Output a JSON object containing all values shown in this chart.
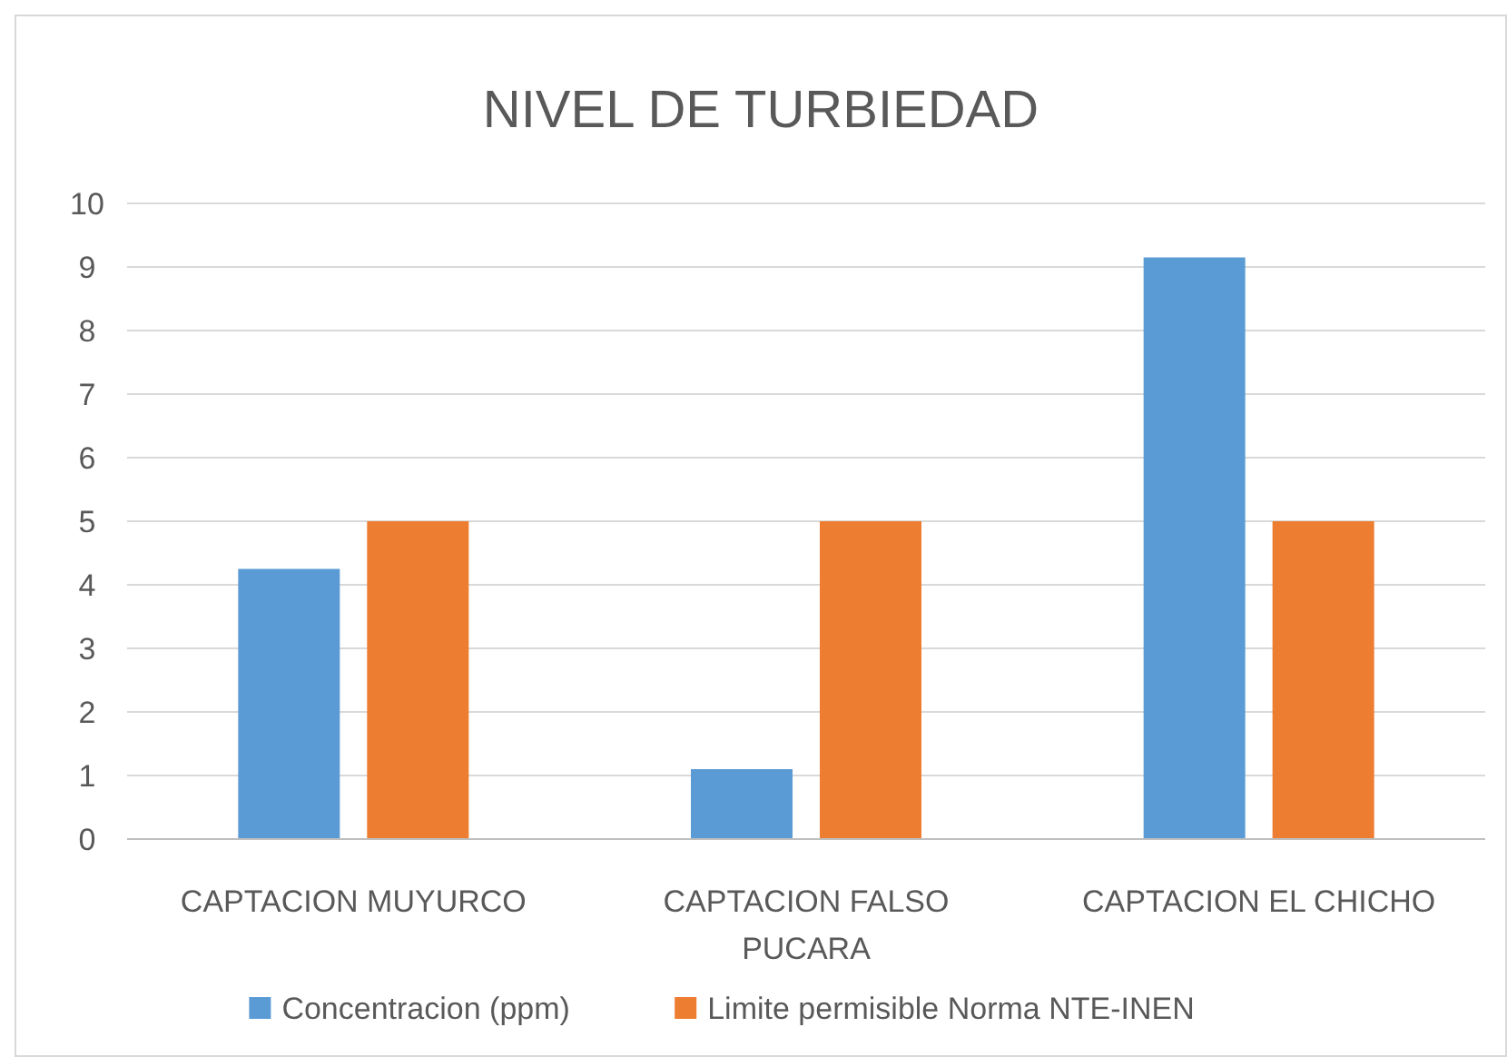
{
  "chart_data": {
    "type": "bar",
    "title": "NIVEL DE TURBIEDAD",
    "categories": [
      "CAPTACION MUYURCO",
      "CAPTACION FALSO PUCARA",
      "CAPTACION EL CHICHO"
    ],
    "series": [
      {
        "name": "Concentracion (ppm)",
        "color": "#5b9bd5",
        "values": [
          4.25,
          1.1,
          9.15
        ]
      },
      {
        "name": "Limite permisible Norma NTE-INEN",
        "color": "#ed7d31",
        "values": [
          5,
          5,
          5
        ]
      }
    ],
    "ylim": [
      0,
      10
    ],
    "yticks": [
      0,
      1,
      2,
      3,
      4,
      5,
      6,
      7,
      8,
      9,
      10
    ],
    "grid": "y",
    "legend": "bottom"
  }
}
